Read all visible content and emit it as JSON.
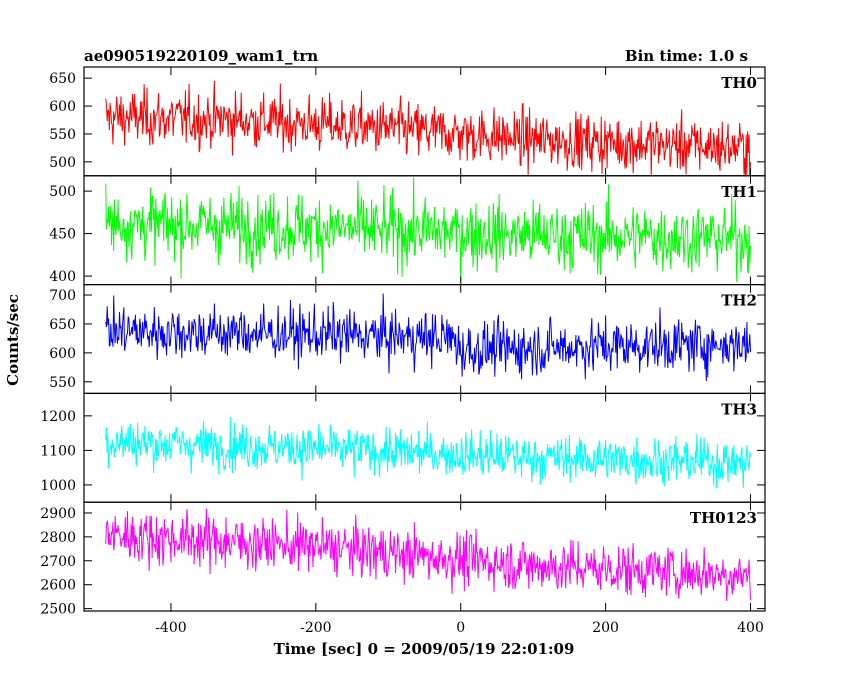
{
  "chart_data": {
    "type": "line",
    "title": "ae090519220109_wam1_trn",
    "subtitle": "Bin time: 1.0 s",
    "xlabel": "Time [sec] 0 = 2009/05/19 22:01:09",
    "ylabel": "Counts/sec",
    "xlim": [
      -520,
      420
    ],
    "x_ticks": [
      -400,
      -200,
      0,
      200,
      400
    ],
    "x_range": [
      -490,
      400
    ],
    "bin_time_s": 1.0,
    "grid": false,
    "panels": [
      {
        "name": "TH0",
        "color": "#ff0000",
        "ylim": [
          475,
          670
        ],
        "y_ticks": [
          500,
          550,
          600,
          650
        ],
        "trend": [
          [
            -490,
            580
          ],
          [
            -300,
            575
          ],
          [
            -100,
            560
          ],
          [
            100,
            540
          ],
          [
            400,
            525
          ]
        ],
        "noise_sd": 25
      },
      {
        "name": "TH1",
        "color": "#00ff00",
        "ylim": [
          390,
          518
        ],
        "y_ticks": [
          400,
          450,
          500
        ],
        "trend": [
          [
            -490,
            462
          ],
          [
            -200,
            457
          ],
          [
            100,
            448
          ],
          [
            400,
            445
          ]
        ],
        "noise_sd": 20
      },
      {
        "name": "TH2",
        "color": "#0000ff",
        "ylim": [
          530,
          718
        ],
        "y_ticks": [
          550,
          600,
          650,
          700
        ],
        "trend": [
          [
            -490,
            638
          ],
          [
            -200,
            632
          ],
          [
            -10,
            625
          ],
          [
            0,
            605
          ],
          [
            200,
            612
          ],
          [
            400,
            615
          ]
        ],
        "noise_sd": 23
      },
      {
        "name": "TH3",
        "color": "#00ffff",
        "ylim": [
          950,
          1265
        ],
        "y_ticks": [
          1000,
          1100,
          1200
        ],
        "trend": [
          [
            -490,
            1125
          ],
          [
            -200,
            1105
          ],
          [
            100,
            1080
          ],
          [
            400,
            1065
          ]
        ],
        "noise_sd": 33
      },
      {
        "name": "TH0123",
        "color": "#ff00ff",
        "ylim": [
          2490,
          2945
        ],
        "y_ticks": [
          2500,
          2600,
          2700,
          2800,
          2900
        ],
        "trend": [
          [
            -490,
            2810
          ],
          [
            -200,
            2760
          ],
          [
            100,
            2680
          ],
          [
            400,
            2640
          ]
        ],
        "noise_sd": 55
      }
    ]
  }
}
